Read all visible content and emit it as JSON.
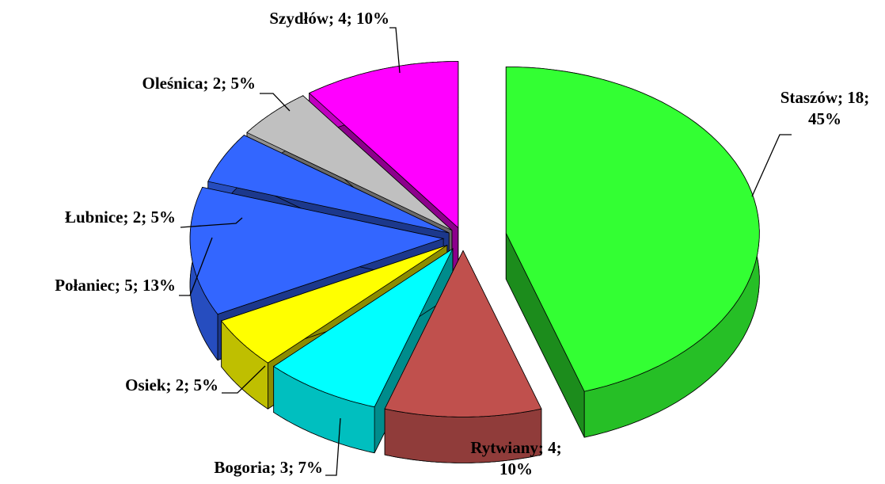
{
  "chart_data": {
    "type": "pie3d",
    "values": [
      18,
      4,
      3,
      2,
      5,
      2,
      2,
      4
    ],
    "value_labels": [
      "Staszów; 18;\n45%",
      "Rytwiany; 4;\n10%",
      "Bogoria; 3; 7%",
      "Osiek; 2; 5%",
      "Połaniec; 5; 13%",
      "Łubnice; 2; 5%",
      "Oleśnica; 2; 5%",
      "Szydłów; 4; 10%"
    ],
    "colors": [
      "#33ff33",
      "#c0504d",
      "#00ffff",
      "#ffff00",
      "#3366ff",
      "#3366ff",
      "#c0c0c0",
      "#ff00ff"
    ]
  }
}
